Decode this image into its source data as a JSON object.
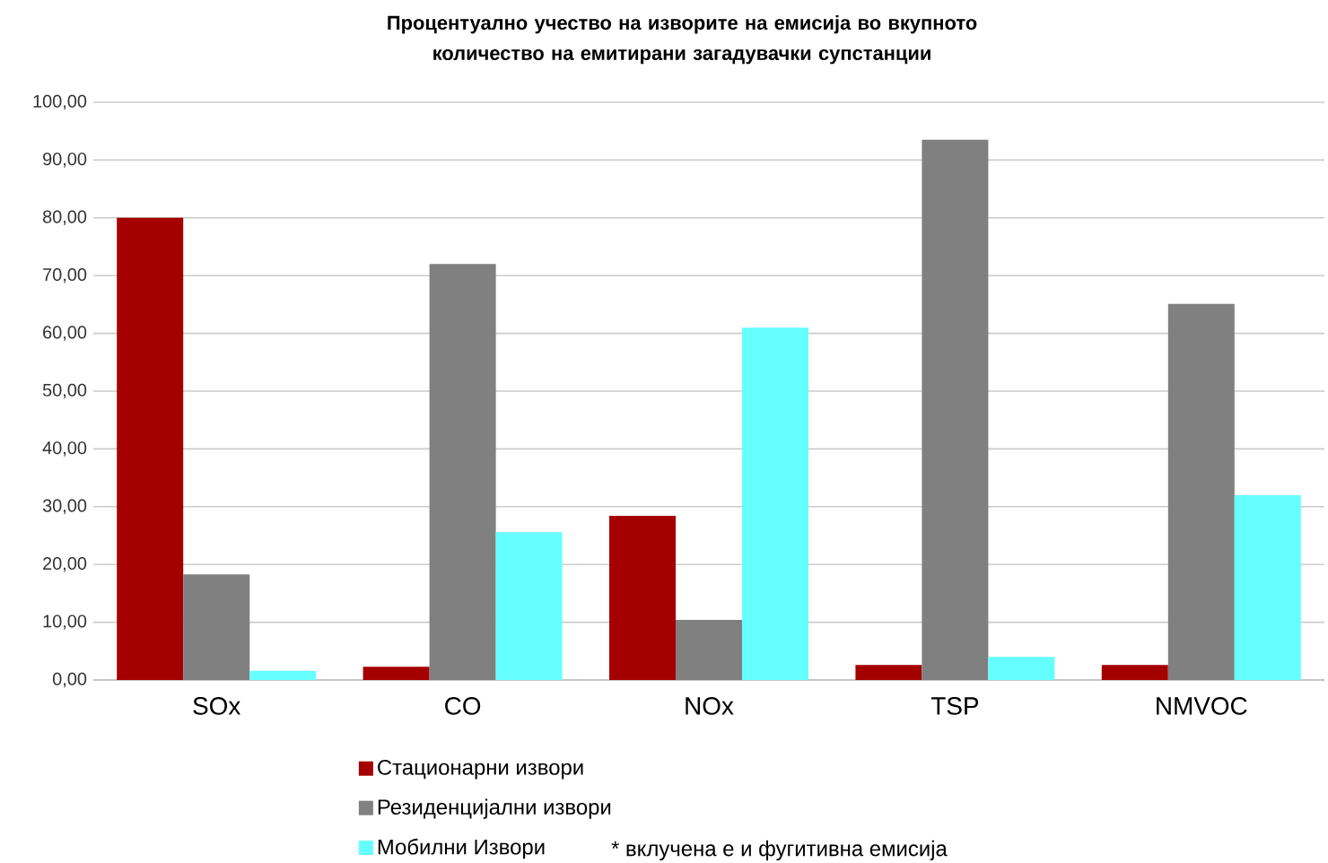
{
  "chart_data": {
    "type": "bar",
    "title": "Процентуално учество на изворите на емисија во вкупното количество на емитирани загадувачки супстанции",
    "categories": [
      "SOx",
      "CO",
      "NOx",
      "TSP",
      "NMVOC"
    ],
    "series": [
      {
        "name": "Стационарни извори",
        "color": "#a50000",
        "values": [
          80.0,
          2.3,
          28.4,
          2.6,
          2.6
        ]
      },
      {
        "name": "Резиденцијални извори",
        "color": "#808080",
        "values": [
          18.3,
          72.0,
          10.4,
          93.5,
          65.1
        ]
      },
      {
        "name": "Мобилни Извори",
        "color": "#66ffff",
        "values": [
          1.6,
          25.6,
          61.0,
          4.0,
          32.0
        ]
      }
    ],
    "ylim": [
      0,
      100
    ],
    "yticks": [
      {
        "value": 0,
        "label": "0,00"
      },
      {
        "value": 10,
        "label": "10,00"
      },
      {
        "value": 20,
        "label": "20,00"
      },
      {
        "value": 30,
        "label": "30,00"
      },
      {
        "value": 40,
        "label": "40,00"
      },
      {
        "value": 50,
        "label": "50,00"
      },
      {
        "value": 60,
        "label": "60,00"
      },
      {
        "value": 70,
        "label": "70,00"
      },
      {
        "value": 80,
        "label": "80,00"
      },
      {
        "value": 90,
        "label": "90,00"
      },
      {
        "value": 100,
        "label": "100,00"
      }
    ],
    "grid": "y",
    "legend": "bottom",
    "annotations": [
      "* вклучена е и фугитивна емисија"
    ]
  }
}
